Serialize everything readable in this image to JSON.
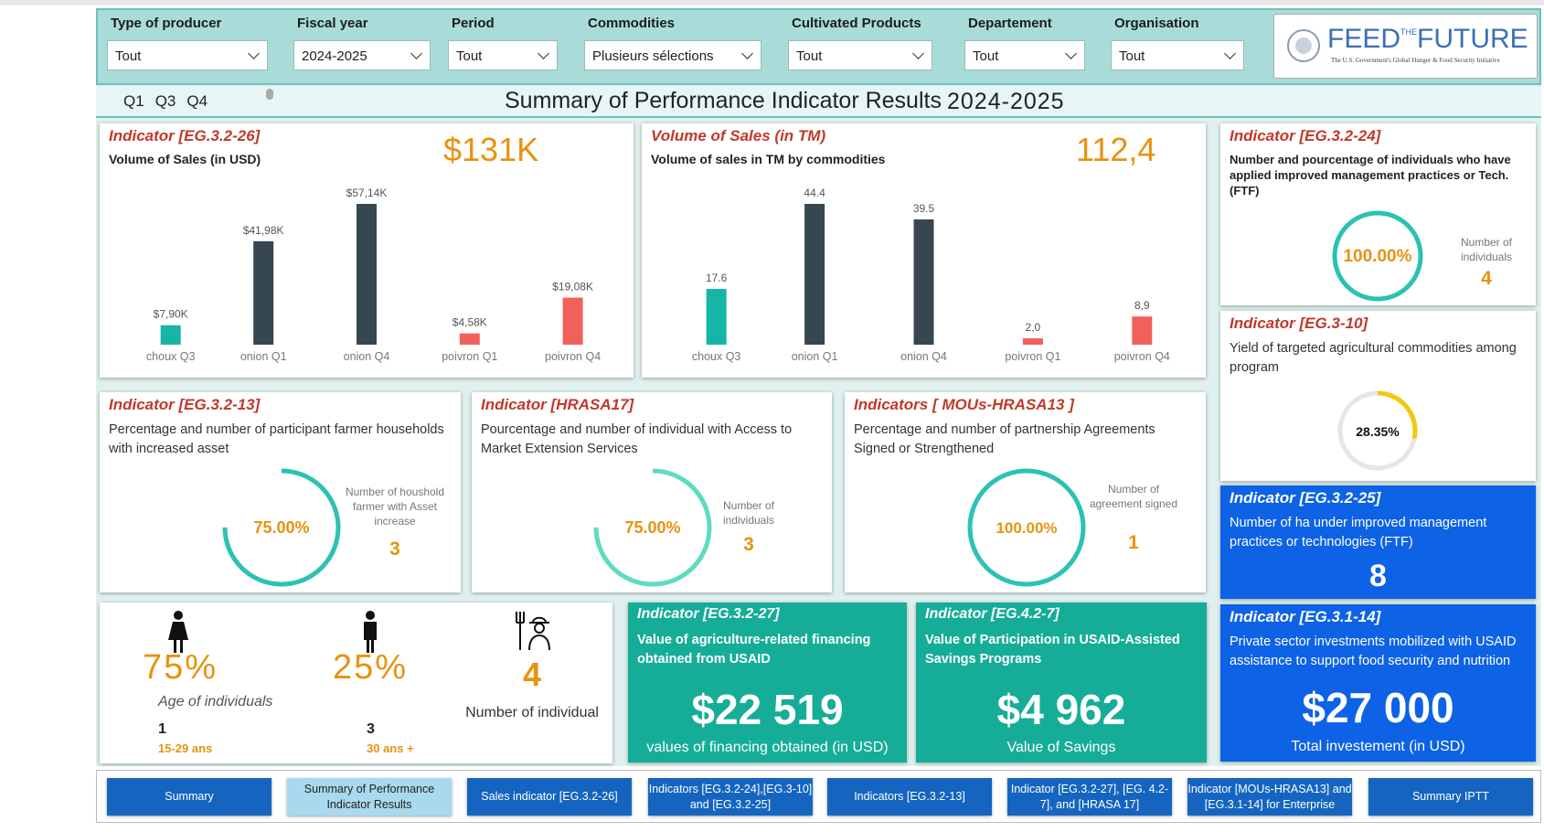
{
  "filters": [
    {
      "label": "Type of producer",
      "value": "Tout"
    },
    {
      "label": "Fiscal year",
      "value": "2024-2025"
    },
    {
      "label": "Period",
      "value": "Tout"
    },
    {
      "label": "Commodities",
      "value": "Plusieurs sélections"
    },
    {
      "label": "Cultivated Products",
      "value": "Tout"
    },
    {
      "label": "Departement",
      "value": "Tout"
    },
    {
      "label": "Organisation",
      "value": "Tout"
    }
  ],
  "logo": {
    "word1": "FEED",
    "word2": "THE",
    "word3": "FUTURE",
    "tagline": "The U.S. Government's Global Hunger & Food Security Initiative"
  },
  "quarters": [
    "Q1",
    "Q3",
    "Q4"
  ],
  "title": "Summary of Performance Indicator Results",
  "fiscal_year": "2024-2025",
  "sales_usd": {
    "indicator": "Indicator [EG.3.2-26]",
    "subtitle": "Volume of Sales (in USD)",
    "kpi": "$131K",
    "chart": {
      "type": "bar",
      "categories": [
        "choux Q3",
        "onion Q1",
        "onion Q4",
        "poivron Q1",
        "poivron Q4"
      ],
      "values": [
        7900,
        41980,
        57140,
        4580,
        19080
      ],
      "value_labels": [
        "$7,90K",
        "$41,98K",
        "$57,14K",
        "$4,58K",
        "$19,08K"
      ],
      "colors": [
        "#16b5a6",
        "#37474f",
        "#37474f",
        "#f2605c",
        "#f2605c"
      ]
    }
  },
  "sales_tm": {
    "indicator": "Volume of Sales  (in TM)",
    "subtitle": "Volume of sales in TM by commodities",
    "kpi": "112,4",
    "chart": {
      "type": "bar",
      "categories": [
        "choux Q3",
        "onion Q1",
        "onion Q4",
        "poivron Q1",
        "poivron Q4"
      ],
      "values": [
        17.6,
        44.4,
        39.5,
        2.0,
        8.9
      ],
      "value_labels": [
        "17.6",
        "44.4",
        "39.5",
        "2,0",
        "8,9"
      ],
      "colors": [
        "#16b5a6",
        "#37474f",
        "#37474f",
        "#f2605c",
        "#f2605c"
      ]
    }
  },
  "eg3224": {
    "indicator": "Indicator [EG.3.2-24]",
    "description": "Number and pourcentage of individuals who have applied improved management practices or Tech.(FTF)",
    "percent": 100,
    "percent_label": "100.00%",
    "count_label": "Number of individuals",
    "count": "4",
    "color": "#2cc2b3"
  },
  "eg310": {
    "indicator": "Indicator [EG.3-10]",
    "description": "Yield of targeted agricultural commodities among program",
    "percent": 28.35,
    "percent_label": "28.35%",
    "color": "#f2c811"
  },
  "eg3225": {
    "indicator": "Indicator [EG.3.2-25]",
    "description": "Number of ha under improved management practices or technologies (FTF)",
    "value": "8"
  },
  "eg3213": {
    "indicator": "Indicator [EG.3.2-13]",
    "description": "Percentage and number of participant farmer households with increased asset",
    "percent": 75,
    "percent_label": "75.00%",
    "count_label": "Number of houshold farmer with Asset increase",
    "count": "3",
    "color": "#2cc2b3"
  },
  "hrasa17": {
    "indicator": "Indicator [HRASA17]",
    "description": "Pourcentage and number of individual with Access to Market Extension Services",
    "percent": 75,
    "percent_label": "75.00%",
    "count_label": "Number of individuals",
    "count": "3",
    "color": "#5fdcc0"
  },
  "mous": {
    "indicator": "Indicators [ MOUs-HRASA13 ]",
    "description": "Percentage and number of partnership Agreements Signed or Strengthened",
    "percent": 100,
    "percent_label": "100.00%",
    "count_label": "Number of agreement signed",
    "count": "1",
    "color": "#2cc2b3"
  },
  "demographics": {
    "female_pct": "75%",
    "male_pct": "25%",
    "age_label": "Age of individuals",
    "young_count": "1",
    "young_label": "15-29 ans",
    "old_count": "3",
    "old_label": "30 ans +",
    "total": "4",
    "total_label": "Number of individual"
  },
  "eg3227": {
    "indicator": "Indicator [EG.3.2-27]",
    "description": "Value of agriculture-related financing obtained from USAID",
    "value": "$22 519",
    "caption": "values of financing obtained (in USD)"
  },
  "eg427": {
    "indicator": "Indicator [EG.4.2-7]",
    "description": "Value of Participation in USAID-Assisted Savings Programs",
    "value": "$4 962",
    "caption": "Value of Savings"
  },
  "eg3114": {
    "indicator": "Indicator [EG.3.1-14]",
    "description": "Private sector investments mobilized with USAID assistance to support food security and nutrition",
    "value": "$27 000",
    "caption": "Total investement (in USD)"
  },
  "nav": [
    "Summary",
    "Summary of Performance Indicator Results",
    "Sales indicator [EG.3.2-26]",
    "Indicators [EG.3.2-24],[EG.3-10] and [EG.3.2-25]",
    "Indicators [EG.3.2-13]",
    "Indicator [EG.3.2-27], [EG. 4.2-7], and [HRASA 17]",
    "Indicator [MOUs-HRASA13] and [EG.3.1-14] for Enterprise",
    "Summary IPTT"
  ]
}
